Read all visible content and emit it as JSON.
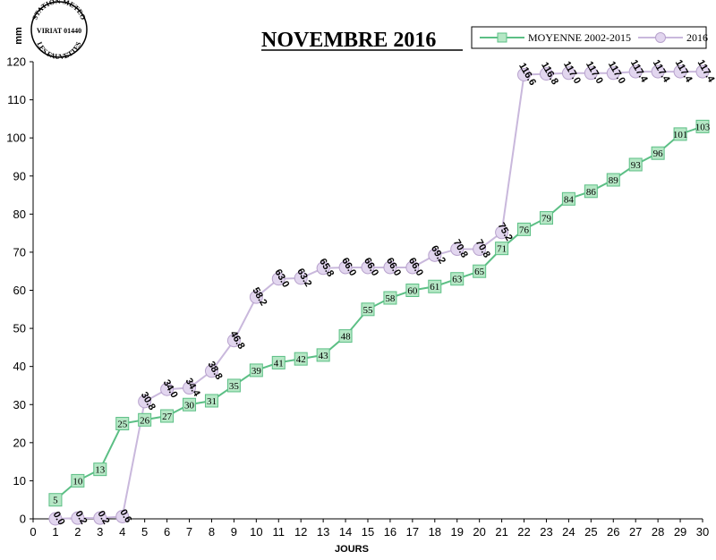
{
  "stamp": {
    "top": "STATION METEO",
    "middle": "VIRIAT 01440",
    "bottom": "LES FAUVETTES"
  },
  "chart_data": {
    "type": "line",
    "title": "NOVEMBRE 2016",
    "xlabel": "JOURS",
    "ylabel": "mm",
    "xlim": [
      0,
      30
    ],
    "ylim": [
      0,
      120
    ],
    "x_ticks": [
      0,
      1,
      2,
      3,
      4,
      5,
      6,
      7,
      8,
      9,
      10,
      11,
      12,
      13,
      14,
      15,
      16,
      17,
      18,
      19,
      20,
      21,
      22,
      23,
      24,
      25,
      26,
      27,
      28,
      29,
      30
    ],
    "y_ticks": [
      0,
      10,
      20,
      30,
      40,
      50,
      60,
      70,
      80,
      90,
      100,
      110,
      120
    ],
    "grid": false,
    "legend_position": "top-right",
    "series": [
      {
        "name": "MOYENNE 2002-2015",
        "color": "#5cbf85",
        "marker_fill": "#b5e7c5",
        "marker": "square",
        "x": [
          1,
          2,
          3,
          4,
          5,
          6,
          7,
          8,
          9,
          10,
          11,
          12,
          13,
          14,
          15,
          16,
          17,
          18,
          19,
          20,
          21,
          22,
          23,
          24,
          25,
          26,
          27,
          28,
          29,
          30
        ],
        "values": [
          5,
          10,
          13,
          25,
          26,
          27,
          30,
          31,
          35,
          39,
          41,
          42,
          43,
          48,
          55,
          58,
          60,
          61,
          63,
          65,
          71,
          76,
          79,
          84,
          86,
          89,
          93,
          96,
          101,
          103
        ],
        "labels": [
          "5",
          "10",
          "13",
          "25",
          "26",
          "27",
          "30",
          "31",
          "35",
          "39",
          "41",
          "42",
          "43",
          "48",
          "55",
          "58",
          "60",
          "61",
          "63",
          "65",
          "71",
          "76",
          "79",
          "84",
          "86",
          "89",
          "93",
          "96",
          "101",
          "103"
        ]
      },
      {
        "name": "2016",
        "color": "#c9b8dc",
        "marker_fill": "#e2d6ef",
        "marker": "circle",
        "x": [
          1,
          2,
          3,
          4,
          5,
          6,
          7,
          8,
          9,
          10,
          11,
          12,
          13,
          14,
          15,
          16,
          17,
          18,
          19,
          20,
          21,
          22,
          23,
          24,
          25,
          26,
          27,
          28,
          29,
          30
        ],
        "values": [
          0.0,
          0.2,
          0.2,
          0.6,
          30.8,
          34.0,
          34.4,
          38.8,
          46.8,
          58.2,
          63.0,
          63.2,
          65.8,
          66.0,
          66.0,
          66.0,
          66.0,
          69.2,
          70.8,
          70.8,
          75.2,
          116.6,
          116.8,
          117.0,
          117.0,
          117.0,
          117.4,
          117.4,
          117.4,
          117.4
        ],
        "labels": [
          "0.0",
          "0.2",
          "0.2",
          "0.6",
          "30.8",
          "34.0",
          "34.4",
          "38.8",
          "46.8",
          "58.2",
          "63.0",
          "63.2",
          "65.8",
          "66.0",
          "66.0",
          "66.0",
          "66.0",
          "69.2",
          "70.8",
          "70.8",
          "75.2",
          "116.6",
          "116.8",
          "117.0",
          "117.0",
          "117.0",
          "117.4",
          "117.4",
          "117.4",
          "117.4"
        ]
      }
    ]
  }
}
